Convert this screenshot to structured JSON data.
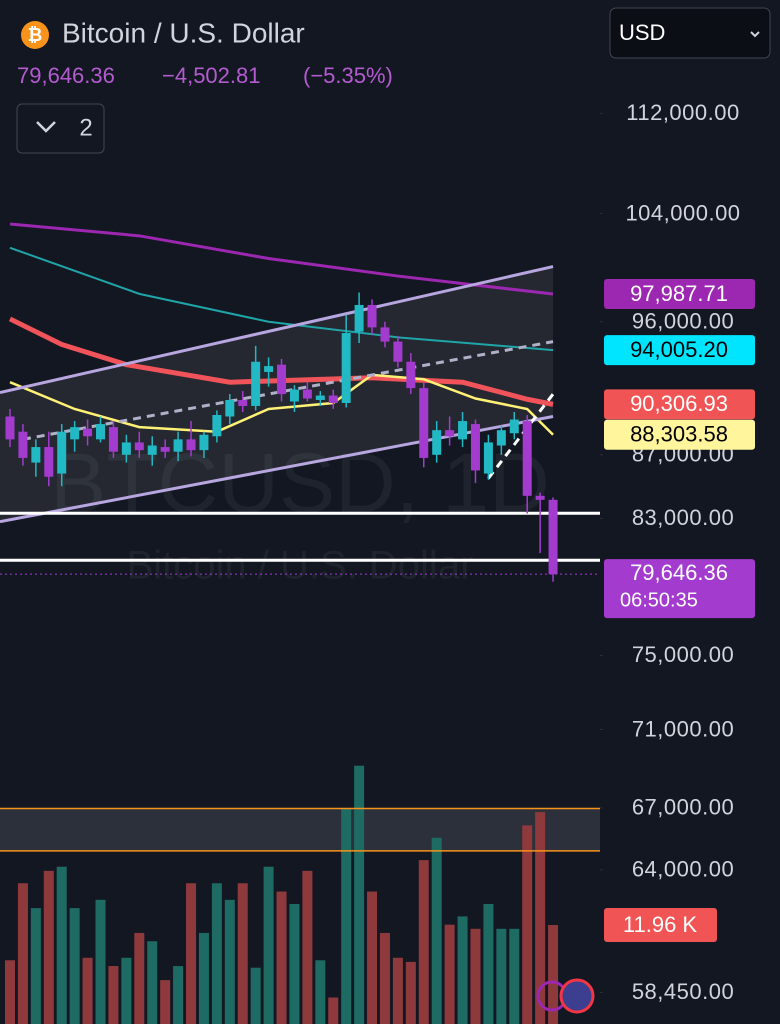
{
  "chart_data": {
    "type": "candlestick",
    "title": "Bitcoin / U.S. Dollar",
    "currency": "USD",
    "indicator_count": "2",
    "last_price_label": "79,646.36",
    "change": "−4,502.81",
    "change_percent": "(−5.35%)",
    "countdown": "06:50:35",
    "watermark": {
      "symbol": "BTCUSD, 1D",
      "name": "Bitcoin / U.S. Dollar"
    },
    "log_scale": true,
    "ylim": [
      121800,
      57100
    ],
    "yticks": [
      {
        "value": 112000,
        "label": "112,000.00"
      },
      {
        "value": 104000,
        "label": "104,000.00"
      },
      {
        "value": 96000,
        "label": "96,000.00"
      },
      {
        "value": 87000,
        "label": "87,000.00"
      },
      {
        "value": 83000,
        "label": "83,000.00"
      },
      {
        "value": 75000,
        "label": "75,000.00"
      },
      {
        "value": 71000,
        "label": "71,000.00"
      },
      {
        "value": 67000,
        "label": "67,000.00"
      },
      {
        "value": 64000,
        "label": "64,000.00"
      },
      {
        "value": 58450,
        "label": "58,450.00"
      }
    ],
    "up_color": "#22b8c4",
    "down_color": "#a43bcf",
    "candles": {
      "open": [
        89500,
        88500,
        86500,
        87500,
        85800,
        88000,
        88700,
        88000,
        88800,
        87000,
        87800,
        87000,
        87500,
        87200,
        88000,
        87300,
        88200,
        89500,
        90600,
        90200,
        92500,
        93000,
        90500,
        91300,
        90600,
        90900,
        90400,
        95300,
        97200,
        95600,
        94600,
        93200,
        91400,
        87000,
        88600,
        88000,
        89000,
        85800,
        87600,
        88400,
        89200,
        84400,
        84149.17
      ],
      "high": [
        90000,
        89000,
        88000,
        88500,
        89000,
        89200,
        89300,
        89500,
        89200,
        88300,
        88500,
        88200,
        88000,
        88500,
        89200,
        88500,
        89900,
        91000,
        91200,
        94300,
        93500,
        93400,
        91600,
        91800,
        91200,
        91300,
        96500,
        98100,
        97600,
        96000,
        95000,
        93800,
        91800,
        89200,
        89500,
        89800,
        89300,
        88300,
        88900,
        89800,
        89600,
        84600,
        84300
      ],
      "low": [
        87500,
        86300,
        85600,
        85000,
        85000,
        87200,
        87600,
        87800,
        86800,
        86500,
        86800,
        86300,
        86800,
        86600,
        86900,
        86800,
        87800,
        89000,
        89800,
        89900,
        91500,
        90500,
        89800,
        90500,
        90200,
        90000,
        90100,
        94500,
        95100,
        94200,
        92800,
        91000,
        86200,
        86500,
        87600,
        87500,
        85200,
        85400,
        87000,
        88000,
        83300,
        80900,
        79200
      ],
      "close": [
        88000,
        86800,
        87500,
        85600,
        88500,
        88800,
        88200,
        89000,
        87200,
        87800,
        87300,
        87600,
        87200,
        88000,
        87300,
        88300,
        89600,
        90600,
        90200,
        93200,
        92900,
        91000,
        91300,
        90700,
        90900,
        90400,
        95200,
        97200,
        95600,
        94600,
        93200,
        91400,
        86800,
        88600,
        88200,
        89200,
        86000,
        87800,
        88600,
        89300,
        84400,
        84149.17,
        79646.36
      ]
    },
    "volume": {
      "values": [
        7.7,
        17,
        14,
        18.5,
        19,
        14,
        8,
        15,
        7,
        8,
        11,
        10,
        5.3,
        7,
        17,
        11,
        17,
        15,
        17,
        6.8,
        19,
        16,
        14.5,
        18.5,
        7.7,
        3.2,
        26,
        31.2,
        16,
        11,
        8,
        7.5,
        19.8,
        22.5,
        12,
        13,
        11.5,
        14.5,
        11.5,
        11.5,
        24,
        25.6,
        11.96
      ],
      "vlim": [
        0,
        123.7
      ],
      "up_color": "#1e6b64",
      "down_color": "#8e3a3d",
      "label_color": "#f05454",
      "last_label": "11.96 K"
    },
    "moving_averages": [
      {
        "color": "#9c27b0",
        "label_bg": "#9c27b0",
        "label_text": "#ffffff",
        "width": 3,
        "x": [
          0,
          10,
          20,
          30,
          42
        ],
        "values": [
          103200,
          102300,
          100600,
          99300,
          97987.71
        ],
        "last_label": "97,987.71"
      },
      {
        "color": "#1fa5a8",
        "label_bg": "#00e5ff",
        "label_text": "#000000",
        "width": 2,
        "x": [
          0,
          10,
          20,
          30,
          42
        ],
        "values": [
          101400,
          98000,
          96000,
          94900,
          94005.2
        ],
        "last_label": "94,005.20"
      },
      {
        "color": "#f0545a",
        "label_bg": "#f05454",
        "label_text": "#ffffff",
        "width": 5,
        "x": [
          0,
          4,
          9,
          17,
          28,
          35,
          40,
          42
        ],
        "values": [
          96200,
          94400,
          93000,
          91800,
          92100,
          91800,
          90650,
          90306.93
        ],
        "last_label": "90,306.93"
      },
      {
        "color": "#fff176",
        "label_bg": "#fff59d",
        "label_text": "#000000",
        "width": 2.5,
        "x": [
          0,
          5,
          10,
          16,
          20,
          25,
          28,
          32,
          36,
          40,
          42
        ],
        "values": [
          91800,
          90000,
          88800,
          88500,
          90000,
          90400,
          92300,
          92000,
          90700,
          90000,
          88303.58
        ],
        "last_label": "88,303.58"
      }
    ],
    "trend_lines": [
      {
        "color": "#b7a6e0",
        "dash": false,
        "x": [
          0,
          42
        ],
        "values": [
          91100,
          100000
        ]
      },
      {
        "color": "#b7a6e0",
        "dash": false,
        "x": [
          0,
          42
        ],
        "values": [
          82800,
          89500
        ]
      },
      {
        "color": "#b0b0c8",
        "dash": true,
        "x": [
          1,
          42
        ],
        "values": [
          88000,
          94600
        ]
      },
      {
        "color": "#ffffff",
        "dash": true,
        "x": [
          37,
          42
        ],
        "values": [
          85500,
          91000
        ]
      }
    ],
    "channel_fill": "rgba(200,200,190,0.10)",
    "horizontal_lines": [
      {
        "value": 83320,
        "color": "#ffffff"
      },
      {
        "value": 80470,
        "color": "#ffffff"
      },
      {
        "value": 66970,
        "color": "#f7931a"
      },
      {
        "value": 64900,
        "color": "#f7931a"
      }
    ],
    "zone_fill": "rgba(120,123,134,0.25)"
  }
}
